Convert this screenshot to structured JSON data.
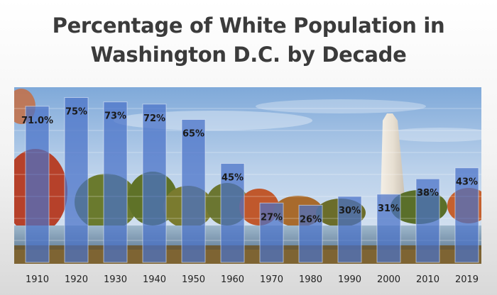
{
  "title_line1": "Percentage of White Population in",
  "title_line2": "Washington D.C. by Decade",
  "chart_data": {
    "type": "bar",
    "title": "Percentage of White Population in Washington D.C. by Decade",
    "xlabel": "",
    "ylabel": "",
    "categories": [
      "1910",
      "1920",
      "1930",
      "1940",
      "1950",
      "1960",
      "1970",
      "1980",
      "1990",
      "2000",
      "2010",
      "2019"
    ],
    "values": [
      71.0,
      75,
      73,
      72,
      65,
      45,
      27,
      26,
      30,
      31,
      38,
      43
    ],
    "data_labels": [
      "71.0%",
      "75%",
      "73%",
      "72%",
      "65%",
      "45%",
      "27%",
      "26%",
      "30%",
      "31%",
      "38%",
      "43%"
    ],
    "ylim": [
      0,
      80
    ],
    "grid": true,
    "legend": "none",
    "bar_color": "#4a72c8",
    "background": "photograph of the National Mall with the Washington Monument in autumn"
  }
}
